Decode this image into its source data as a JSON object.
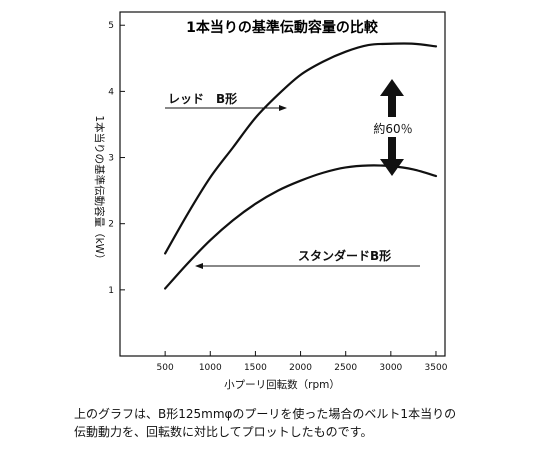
{
  "chart_data": {
    "type": "line",
    "title": "1本当りの基準伝動容量の比較",
    "xlabel": "小プーリ回転数（rpm）",
    "ylabel": "1本当りの基準伝動容量（kW）",
    "xlim": [
      0,
      3600
    ],
    "ylim": [
      0,
      5.2
    ],
    "xticks": [
      500,
      1000,
      1500,
      2000,
      2500,
      3000,
      3500
    ],
    "yticks": [
      1,
      2,
      3,
      4,
      5
    ],
    "grid": false,
    "series": [
      {
        "name": "レッド　B形",
        "x": [
          500,
          750,
          1000,
          1250,
          1500,
          1750,
          2000,
          2250,
          2500,
          2750,
          3000,
          3250,
          3500
        ],
        "y": [
          1.55,
          2.15,
          2.7,
          3.15,
          3.6,
          3.95,
          4.25,
          4.45,
          4.6,
          4.7,
          4.72,
          4.72,
          4.68
        ]
      },
      {
        "name": "スタンダードB形",
        "x": [
          500,
          750,
          1000,
          1250,
          1500,
          1750,
          2000,
          2250,
          2500,
          2750,
          3000,
          3250,
          3500
        ],
        "y": [
          1.02,
          1.4,
          1.75,
          2.05,
          2.3,
          2.5,
          2.65,
          2.77,
          2.85,
          2.88,
          2.87,
          2.82,
          2.72
        ]
      }
    ],
    "annotations": {
      "red_label": "レッド　B形",
      "std_label": "スタンダードB形",
      "difference": "約60％"
    }
  },
  "caption": {
    "line1": "上のグラフは、B形125mmφのプーリを使った場合のベルト1本当りの",
    "line2": "伝動動力を、回転数に対比してプロットしたものです。"
  }
}
